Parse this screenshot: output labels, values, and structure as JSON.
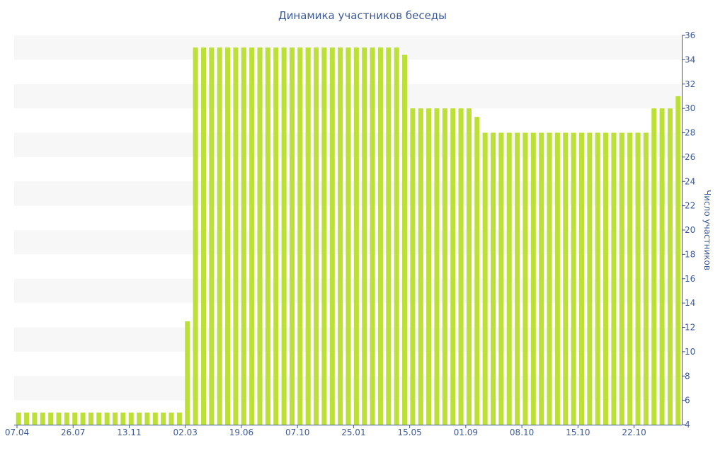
{
  "chart_data": {
    "type": "bar",
    "title": "Динамика участников беседы",
    "xlabel": "",
    "ylabel": "Число участников",
    "ylim": [
      4,
      36
    ],
    "y_ticks": [
      4,
      6,
      8,
      10,
      12,
      14,
      16,
      18,
      20,
      22,
      24,
      26,
      28,
      30,
      32,
      34,
      36
    ],
    "y_axis_side": "right",
    "x_tick_labels": [
      "07.04",
      "26.07",
      "13.11",
      "02.03",
      "19.06",
      "07.10",
      "25.01",
      "15.05",
      "01.09",
      "08.10",
      "15.10",
      "22.10"
    ],
    "grid": "alternating horizontal bands",
    "colors": {
      "bar": "#bde038",
      "band": "#f7f7f7",
      "axis": "#3c5a99",
      "text": "#3c5a99"
    },
    "values": [
      5,
      5,
      5,
      5,
      5,
      5,
      5,
      5,
      5,
      5,
      5,
      5,
      5,
      5,
      5,
      5,
      5,
      5,
      5,
      5,
      5,
      12.5,
      35,
      35,
      35,
      35,
      35,
      35,
      35,
      35,
      35,
      35,
      35,
      35,
      35,
      35,
      35,
      35,
      35,
      35,
      35,
      35,
      35,
      35,
      35,
      35,
      35,
      35,
      34.4,
      30,
      30,
      30,
      30,
      30,
      30,
      30,
      30,
      29.3,
      28,
      28,
      28,
      28,
      28,
      28,
      28,
      28,
      28,
      28,
      28,
      28,
      28,
      28,
      28,
      28,
      28,
      28,
      28,
      28,
      28,
      30,
      30,
      30,
      31
    ]
  }
}
